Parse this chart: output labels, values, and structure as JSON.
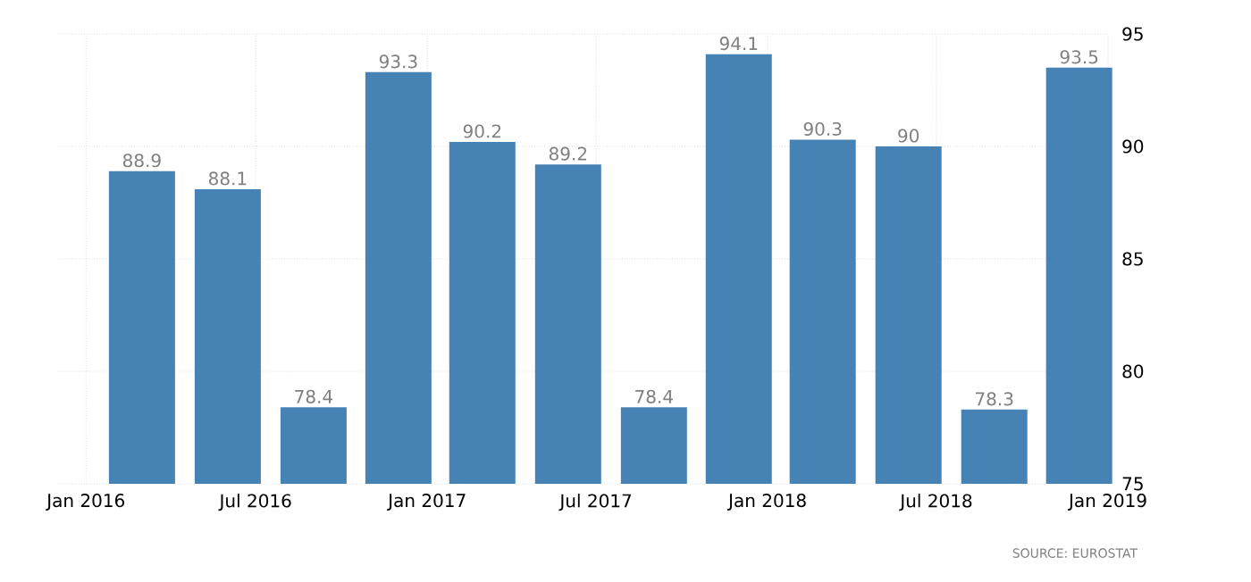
{
  "chart_data": {
    "type": "bar",
    "x": [
      "2016-03",
      "2016-06",
      "2016-09",
      "2016-12",
      "2017-03",
      "2017-06",
      "2017-09",
      "2017-12",
      "2018-03",
      "2018-06",
      "2018-09",
      "2018-12"
    ],
    "values": [
      88.9,
      88.1,
      78.4,
      93.3,
      90.2,
      89.2,
      78.4,
      94.1,
      90.3,
      90,
      78.3,
      93.5
    ],
    "color": "#4682b4",
    "data_labels": true,
    "xlim": [
      "2015-12-03",
      "2019-01-01"
    ],
    "xticks": [
      {
        "value": "2016-01",
        "label": "Jan 2016"
      },
      {
        "value": "2016-07",
        "label": "Jul 2016"
      },
      {
        "value": "2017-01",
        "label": "Jan 2017"
      },
      {
        "value": "2017-07",
        "label": "Jul 2017"
      },
      {
        "value": "2018-01",
        "label": "Jan 2018"
      },
      {
        "value": "2018-07",
        "label": "Jul 2018"
      },
      {
        "value": "2019-01",
        "label": "Jan 2019"
      }
    ],
    "ylim": [
      75,
      95
    ],
    "yticks": [
      75,
      80,
      85,
      90,
      95
    ],
    "grid": true,
    "annotations": [
      "SOURCE: EUROSTAT"
    ]
  }
}
